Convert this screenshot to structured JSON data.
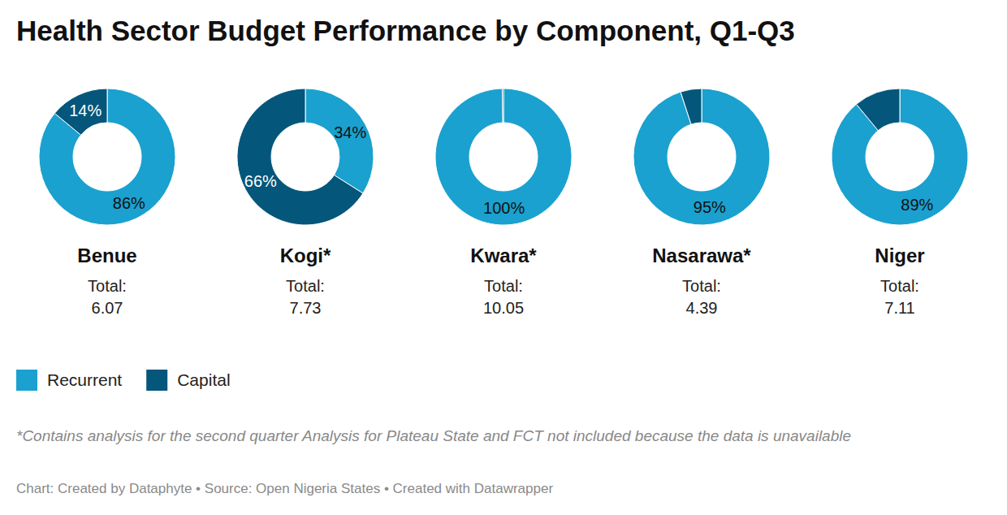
{
  "chart_data": {
    "type": "pie",
    "title": "Health Sector Budget Performance by Component, Q1-Q3",
    "categories": [
      "Recurrent",
      "Capital"
    ],
    "colors": [
      "#1aa1cf",
      "#05567b"
    ],
    "legend": "bottom-left",
    "data_labels": true,
    "total_label": "Total:",
    "charts": [
      {
        "title": "Benue",
        "total": 6.07,
        "values": [
          86,
          14
        ],
        "value_labels": [
          "86%",
          "14%"
        ]
      },
      {
        "title": "Kogi*",
        "total": 7.73,
        "values": [
          34,
          66
        ],
        "value_labels": [
          "34%",
          "66%"
        ]
      },
      {
        "title": "Kwara*",
        "total": 10.05,
        "values": [
          99.7,
          0.3
        ],
        "value_labels": [
          "100%",
          null
        ]
      },
      {
        "title": "Nasarawa*",
        "total": 4.39,
        "values": [
          95,
          5
        ],
        "value_labels": [
          "95%",
          null
        ]
      },
      {
        "title": "Niger",
        "total": 7.11,
        "values": [
          89,
          11
        ],
        "value_labels": [
          "89%",
          null
        ]
      }
    ],
    "note": "*Contains analysis for the second quarter Analysis for Plateau State and FCT not included because the data is unavailable",
    "credit": "Chart: Created by Dataphyte • Source: Open Nigeria States • Created with Datawrapper"
  }
}
